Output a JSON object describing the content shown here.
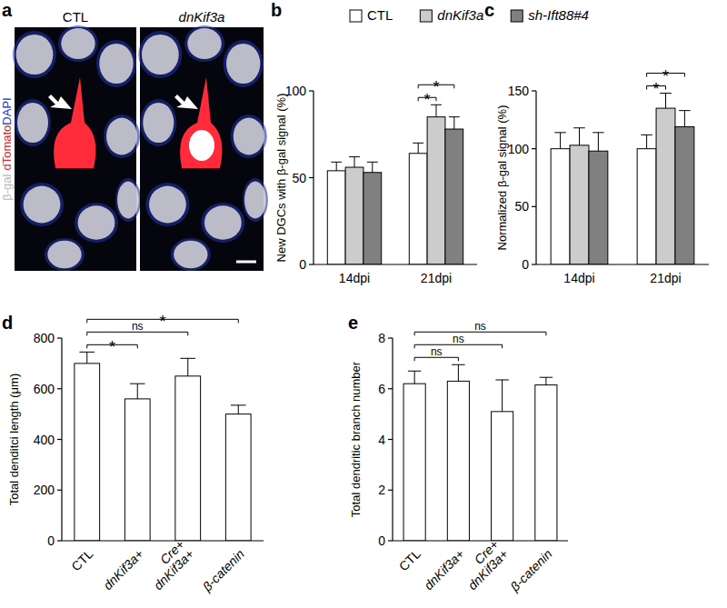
{
  "panel_a": {
    "panel": "a",
    "channels": [
      {
        "text": "β-gal",
        "color": "#b8b8b8"
      },
      {
        "text": "dTomato",
        "color": "#e5202e"
      },
      {
        "text": "DAPI",
        "color": "#2436c8"
      }
    ],
    "images": [
      {
        "label": "CTL"
      },
      {
        "label": "dnKif3a"
      }
    ]
  },
  "chart_data": [
    {
      "panel": "b",
      "type": "bar",
      "categories": [
        "14dpi",
        "21dpi"
      ],
      "y_label": "New DGCs with β-gal signal (%)",
      "ylim": [
        0,
        100
      ],
      "yticks": [
        0,
        50,
        100
      ],
      "legend": "top",
      "series": [
        {
          "name": "CTL",
          "color": "#ffffff",
          "values": [
            54,
            64
          ],
          "errors": [
            5,
            6
          ]
        },
        {
          "name": "dnKif3a",
          "color": "#cccccc",
          "values": [
            56,
            85
          ],
          "errors": [
            6,
            7
          ]
        },
        {
          "name": "sh-Ift88#4",
          "color": "#808080",
          "values": [
            53,
            78
          ],
          "errors": [
            6,
            7
          ]
        }
      ],
      "annotations": [
        {
          "text": "*",
          "category": 1,
          "from": 0,
          "to": 1
        },
        {
          "text": "*",
          "category": 1,
          "from": 0,
          "to": 2
        }
      ]
    },
    {
      "panel": "c",
      "type": "bar",
      "categories": [
        "14dpi",
        "21dpi"
      ],
      "y_label": "Normalized β-gal signal (%)",
      "ylim": [
        0,
        150
      ],
      "yticks": [
        0,
        50,
        100,
        150
      ],
      "series": [
        {
          "color": "#ffffff",
          "values": [
            100,
            100
          ],
          "errors": [
            14,
            12
          ]
        },
        {
          "color": "#cccccc",
          "values": [
            103,
            135
          ],
          "errors": [
            15,
            13
          ]
        },
        {
          "color": "#808080",
          "values": [
            98,
            119
          ],
          "errors": [
            16,
            14
          ]
        }
      ],
      "annotations": [
        {
          "text": "*",
          "category": 1,
          "from": 0,
          "to": 1
        },
        {
          "text": "*",
          "category": 1,
          "from": 0,
          "to": 2
        }
      ]
    },
    {
      "panel": "d",
      "type": "bar",
      "categories": [
        "CTL",
        "dnKif3a+",
        "Cre+\ndnKif3a+",
        "β-catenin"
      ],
      "y_label": "Total denditci length (μm)",
      "ylim": [
        0,
        800
      ],
      "yticks": [
        0,
        200,
        400,
        600,
        800
      ],
      "color": "#ffffff",
      "values": [
        700,
        560,
        650,
        500
      ],
      "errors": [
        45,
        60,
        70,
        35
      ],
      "annotations": [
        {
          "text": "*",
          "from": 0,
          "to": 1
        },
        {
          "text": "ns",
          "from": 0,
          "to": 2
        },
        {
          "text": "*",
          "from": 0,
          "to": 3
        }
      ]
    },
    {
      "panel": "e",
      "type": "bar",
      "categories": [
        "CTL",
        "dnKif3a+",
        "Cre+\ndnKif3a+",
        "β-catenin"
      ],
      "y_label": "Total dendritic branch number",
      "ylim": [
        0,
        8
      ],
      "yticks": [
        0,
        2,
        4,
        6,
        8
      ],
      "color": "#ffffff",
      "values": [
        6.2,
        6.3,
        5.1,
        6.15
      ],
      "errors": [
        0.5,
        0.65,
        1.25,
        0.3
      ],
      "annotations": [
        {
          "text": "ns",
          "from": 0,
          "to": 1
        },
        {
          "text": "ns",
          "from": 0,
          "to": 2
        },
        {
          "text": "ns",
          "from": 0,
          "to": 3
        }
      ]
    }
  ]
}
